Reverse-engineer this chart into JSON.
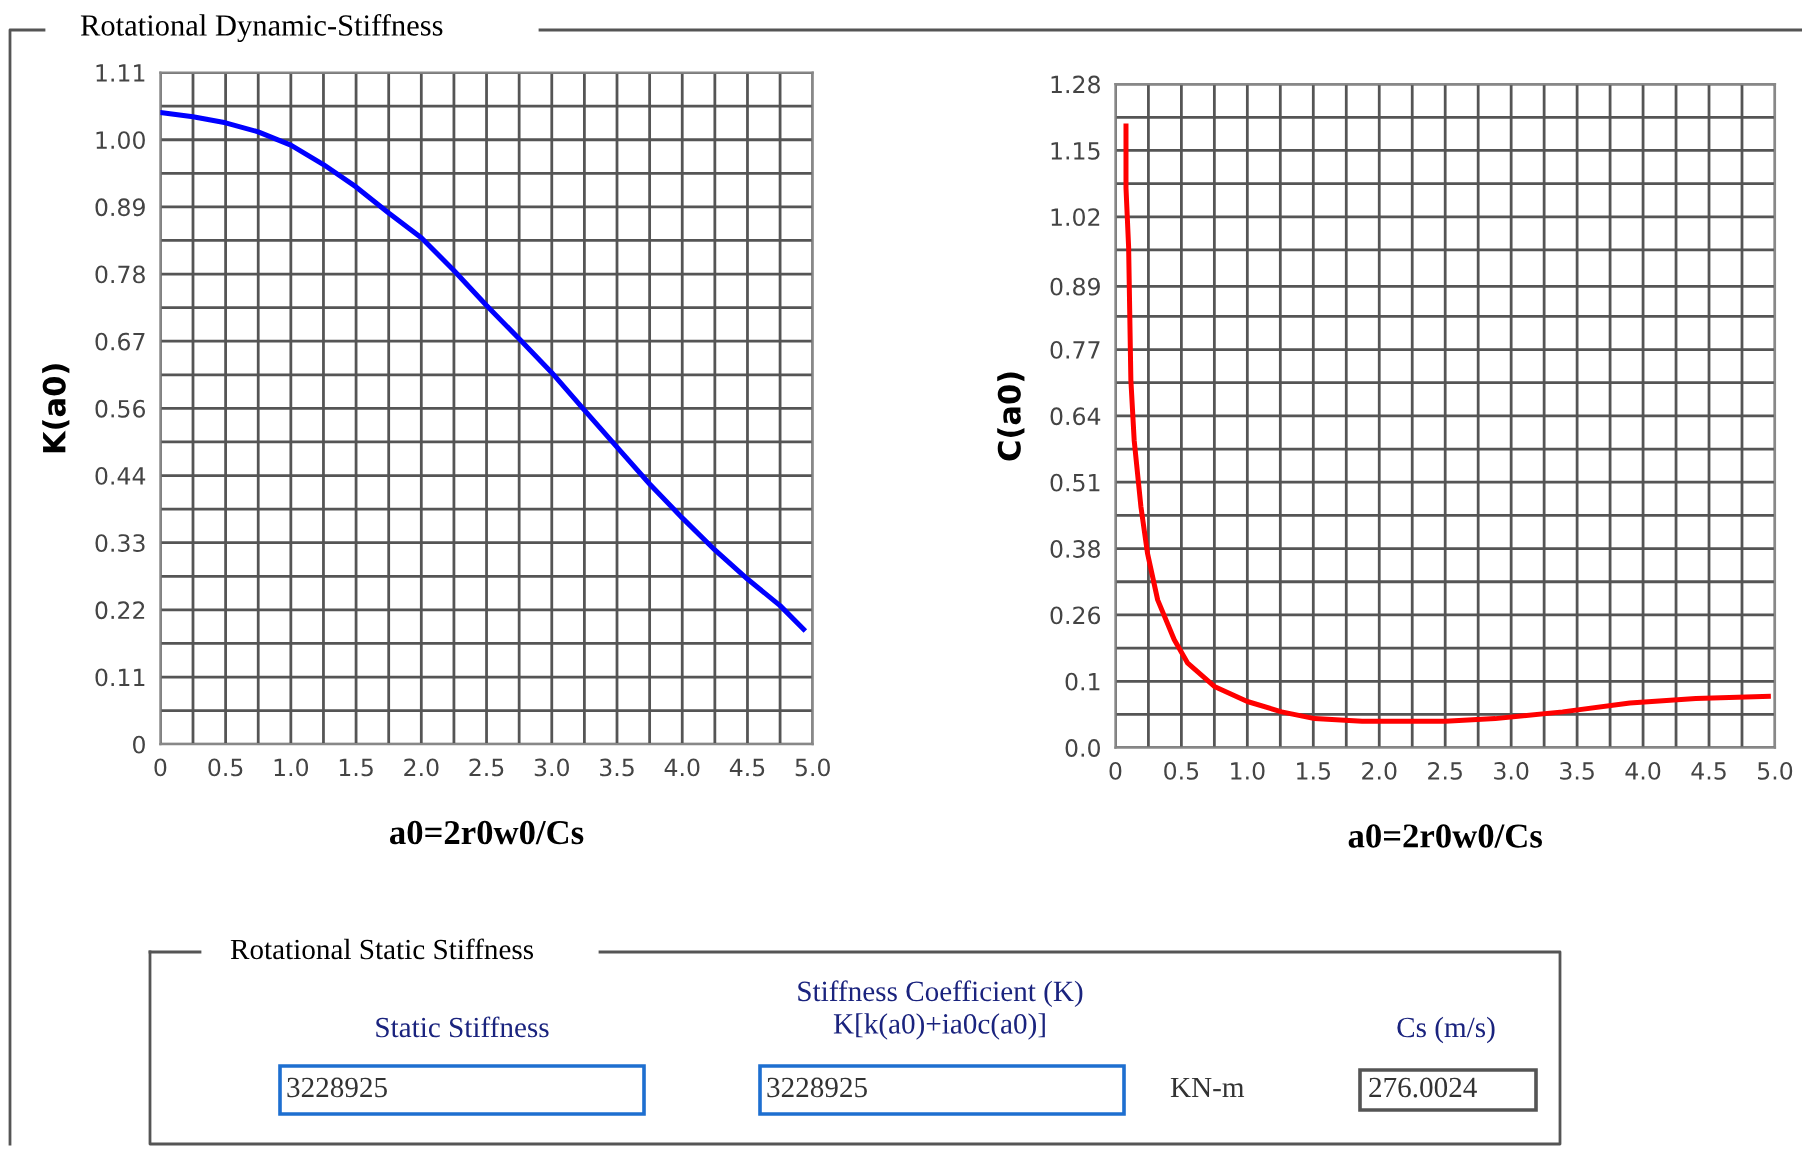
{
  "chart_data": [
    {
      "type": "line",
      "title": "Rotational Dynamic-Stiffness",
      "xlabel": "a0=2r0w0/Cs",
      "ylabel": "K(a0)",
      "x": [
        0,
        0.25,
        0.5,
        0.75,
        1.0,
        1.25,
        1.5,
        1.75,
        2.0,
        2.25,
        2.5,
        2.75,
        3.0,
        3.25,
        3.5,
        3.75,
        4.0,
        4.25,
        4.5,
        4.75,
        4.93
      ],
      "series": [
        {
          "color": "#0000ff",
          "values": [
            1.044,
            1.037,
            1.027,
            1.012,
            0.99,
            0.958,
            0.921,
            0.878,
            0.837,
            0.783,
            0.725,
            0.67,
            0.614,
            0.552,
            0.491,
            0.43,
            0.374,
            0.321,
            0.273,
            0.229,
            0.19
          ]
        }
      ],
      "xlim": [
        0,
        5
      ],
      "ylim": [
        0,
        1.11
      ],
      "xticks": [
        0,
        {
          "value": 0.25,
          "label": null
        },
        0.5,
        {
          "value": 0.75,
          "label": null
        },
        {
          "value": 1,
          "label": "1.0"
        },
        {
          "value": 1.25,
          "label": null
        },
        1.5,
        {
          "value": 1.75,
          "label": null
        },
        {
          "value": 2,
          "label": "2.0"
        },
        {
          "value": 2.25,
          "label": null
        },
        2.5,
        {
          "value": 2.75,
          "label": null
        },
        {
          "value": 3,
          "label": "3.0"
        },
        {
          "value": 3.25,
          "label": null
        },
        3.5,
        {
          "value": 3.75,
          "label": null
        },
        {
          "value": 4,
          "label": "4.0"
        },
        {
          "value": 4.25,
          "label": null
        },
        4.5,
        {
          "value": 4.75,
          "label": null
        },
        {
          "value": 5,
          "label": "5.0"
        }
      ],
      "yticks": [
        0,
        {
          "value": 0.0555,
          "label": null
        },
        {
          "value": 0.111,
          "label": "0.11"
        },
        {
          "value": 0.1665,
          "label": null
        },
        {
          "value": 0.222,
          "label": "0.22"
        },
        {
          "value": 0.2775,
          "label": null
        },
        {
          "value": 0.333,
          "label": "0.33"
        },
        {
          "value": 0.3885,
          "label": null
        },
        {
          "value": 0.444,
          "label": "0.44"
        },
        {
          "value": 0.4995,
          "label": null
        },
        {
          "value": 0.555,
          "label": "0.56"
        },
        {
          "value": 0.6105,
          "label": null
        },
        {
          "value": 0.666,
          "label": "0.67"
        },
        {
          "value": 0.7215,
          "label": null
        },
        {
          "value": 0.777,
          "label": "0.78"
        },
        {
          "value": 0.8325,
          "label": null
        },
        {
          "value": 0.888,
          "label": "0.89"
        },
        {
          "value": 0.9435,
          "label": null
        },
        {
          "value": 0.999,
          "label": "1.00"
        },
        {
          "value": 1.0545,
          "label": null
        },
        1.11
      ],
      "grid": true,
      "marker": "none",
      "line_style": "solid"
    },
    {
      "type": "line",
      "xlabel": "a0=2r0w0/Cs",
      "ylabel": "C(a0)",
      "x": [
        0.08,
        0.08,
        0.1,
        0.117,
        0.142,
        0.193,
        0.243,
        0.32,
        0.446,
        0.548,
        0.75,
        1.0,
        1.26,
        1.51,
        1.87,
        2.5,
        2.88,
        3.39,
        3.9,
        4.4,
        4.95
      ],
      "series": [
        {
          "color": "#ff0000",
          "values": [
            1.199,
            1.08,
            0.965,
            0.709,
            0.593,
            0.465,
            0.375,
            0.285,
            0.208,
            0.163,
            0.118,
            0.089,
            0.069,
            0.056,
            0.051,
            0.051,
            0.056,
            0.069,
            0.086,
            0.095,
            0.099
          ]
        }
      ],
      "xlim": [
        0,
        5
      ],
      "ylim": [
        0,
        1.28
      ],
      "xticks": [
        0,
        {
          "value": 0.25,
          "label": null
        },
        0.5,
        {
          "value": 0.75,
          "label": null
        },
        {
          "value": 1,
          "label": "1.0"
        },
        {
          "value": 1.25,
          "label": null
        },
        1.5,
        {
          "value": 1.75,
          "label": null
        },
        {
          "value": 2,
          "label": "2.0"
        },
        {
          "value": 2.25,
          "label": null
        },
        2.5,
        {
          "value": 2.75,
          "label": null
        },
        {
          "value": 3,
          "label": "3.0"
        },
        {
          "value": 3.25,
          "label": null
        },
        3.5,
        {
          "value": 3.75,
          "label": null
        },
        {
          "value": 4,
          "label": "4.0"
        },
        {
          "value": 4.25,
          "label": null
        },
        4.5,
        {
          "value": 4.75,
          "label": null
        },
        {
          "value": 5,
          "label": "5.0"
        }
      ],
      "yticks": [
        {
          "value": 0,
          "label": "0.0"
        },
        {
          "value": 0.064,
          "label": null
        },
        {
          "value": 0.128,
          "label": "0.1"
        },
        {
          "value": 0.192,
          "label": null
        },
        {
          "value": 0.256,
          "label": "0.26"
        },
        {
          "value": 0.32,
          "label": null
        },
        {
          "value": 0.384,
          "label": "0.38"
        },
        {
          "value": 0.448,
          "label": null
        },
        {
          "value": 0.512,
          "label": "0.51"
        },
        {
          "value": 0.576,
          "label": null
        },
        0.64,
        {
          "value": 0.704,
          "label": null
        },
        {
          "value": 0.768,
          "label": "0.77"
        },
        {
          "value": 0.832,
          "label": null
        },
        {
          "value": 0.89,
          "label": "0.89"
        },
        {
          "value": 0.96,
          "label": null
        },
        {
          "value": 1.024,
          "label": "1.02"
        },
        {
          "value": 1.088,
          "label": null
        },
        {
          "value": 1.152,
          "label": "1.15"
        },
        {
          "value": 1.216,
          "label": null
        },
        1.28
      ],
      "grid": true,
      "marker": "none",
      "line_style": "solid"
    },
    {
      "type": "other",
      "title": "Rotational Static Stiffness",
      "annotations": [
        "Static Stiffness",
        "Stiffness Coefficient (K)\nK[k(a0)+ia0c(a0)]",
        "Cs (m/s)",
        "3228925",
        "3228925",
        "KN-m",
        "276.0024"
      ]
    }
  ]
}
